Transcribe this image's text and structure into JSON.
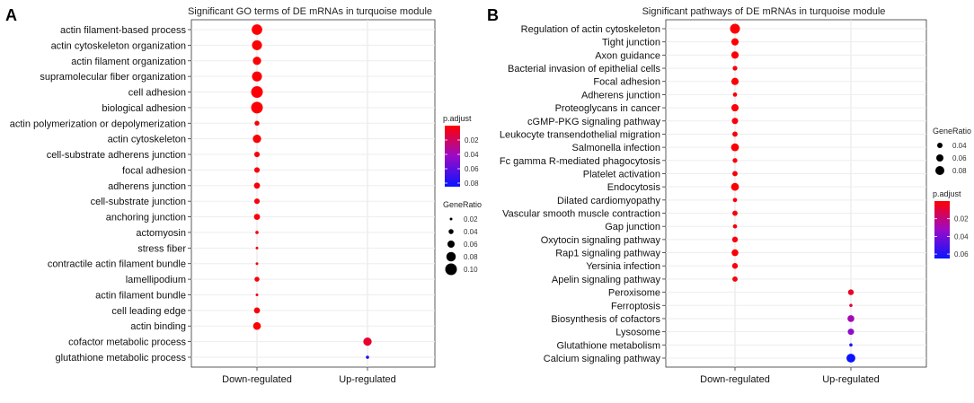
{
  "chart_data": [
    {
      "panel_label": "A",
      "type": "scatter",
      "title": "Significant GO terms of DE mRNAs in turquoise module",
      "categories_x": [
        "Down-regulated",
        "Up-regulated"
      ],
      "terms": [
        "actin filament-based process",
        "actin cytoskeleton organization",
        "actin filament organization",
        "supramolecular fiber organization",
        "cell adhesion",
        "biological adhesion",
        "actin polymerization or depolymerization",
        "actin cytoskeleton",
        "cell-substrate adherens junction",
        "focal adhesion",
        "adherens junction",
        "cell-substrate junction",
        "anchoring junction",
        "actomyosin",
        "stress fiber",
        "contractile actin filament bundle",
        "lamellipodium",
        "actin filament bundle",
        "cell leading edge",
        "actin binding",
        "cofactor metabolic process",
        "glutathione metabolic process"
      ],
      "points": [
        {
          "term": "actin filament-based process",
          "group": "Down-regulated",
          "gene_ratio": 0.09,
          "p_adjust": 0.001
        },
        {
          "term": "actin cytoskeleton organization",
          "group": "Down-regulated",
          "gene_ratio": 0.085,
          "p_adjust": 0.001
        },
        {
          "term": "actin filament organization",
          "group": "Down-regulated",
          "gene_ratio": 0.07,
          "p_adjust": 0.001
        },
        {
          "term": "supramolecular fiber organization",
          "group": "Down-regulated",
          "gene_ratio": 0.085,
          "p_adjust": 0.001
        },
        {
          "term": "cell adhesion",
          "group": "Down-regulated",
          "gene_ratio": 0.1,
          "p_adjust": 0.001
        },
        {
          "term": "biological adhesion",
          "group": "Down-regulated",
          "gene_ratio": 0.1,
          "p_adjust": 0.001
        },
        {
          "term": "actin polymerization or depolymerization",
          "group": "Down-regulated",
          "gene_ratio": 0.04,
          "p_adjust": 0.002
        },
        {
          "term": "actin cytoskeleton",
          "group": "Down-regulated",
          "gene_ratio": 0.07,
          "p_adjust": 0.001
        },
        {
          "term": "cell-substrate adherens junction",
          "group": "Down-regulated",
          "gene_ratio": 0.045,
          "p_adjust": 0.002
        },
        {
          "term": "focal adhesion",
          "group": "Down-regulated",
          "gene_ratio": 0.045,
          "p_adjust": 0.002
        },
        {
          "term": "adherens junction",
          "group": "Down-regulated",
          "gene_ratio": 0.05,
          "p_adjust": 0.002
        },
        {
          "term": "cell-substrate junction",
          "group": "Down-regulated",
          "gene_ratio": 0.045,
          "p_adjust": 0.002
        },
        {
          "term": "anchoring junction",
          "group": "Down-regulated",
          "gene_ratio": 0.05,
          "p_adjust": 0.002
        },
        {
          "term": "actomyosin",
          "group": "Down-regulated",
          "gene_ratio": 0.025,
          "p_adjust": 0.003
        },
        {
          "term": "stress fiber",
          "group": "Down-regulated",
          "gene_ratio": 0.018,
          "p_adjust": 0.003
        },
        {
          "term": "contractile actin filament bundle",
          "group": "Down-regulated",
          "gene_ratio": 0.018,
          "p_adjust": 0.003
        },
        {
          "term": "lamellipodium",
          "group": "Down-regulated",
          "gene_ratio": 0.04,
          "p_adjust": 0.002
        },
        {
          "term": "actin filament bundle",
          "group": "Down-regulated",
          "gene_ratio": 0.018,
          "p_adjust": 0.003
        },
        {
          "term": "cell leading edge",
          "group": "Down-regulated",
          "gene_ratio": 0.05,
          "p_adjust": 0.002
        },
        {
          "term": "actin binding",
          "group": "Down-regulated",
          "gene_ratio": 0.065,
          "p_adjust": 0.001
        },
        {
          "term": "cofactor metabolic process",
          "group": "Up-regulated",
          "gene_ratio": 0.07,
          "p_adjust": 0.01
        },
        {
          "term": "glutathione metabolic process",
          "group": "Up-regulated",
          "gene_ratio": 0.025,
          "p_adjust": 0.08
        }
      ],
      "legend_color": {
        "title": "p.adjust",
        "ticks": [
          "0.02",
          "0.04",
          "0.06",
          "0.08"
        ],
        "min": 0.0,
        "max": 0.085
      },
      "legend_size": {
        "title": "GeneRatio",
        "ticks": [
          "0.02",
          "0.04",
          "0.06",
          "0.08",
          "0.10"
        ]
      },
      "size_range": [
        0.02,
        0.1
      ]
    },
    {
      "panel_label": "B",
      "type": "scatter",
      "title": "Significant pathways of DE mRNAs in turquoise module",
      "categories_x": [
        "Down-regulated",
        "Up-regulated"
      ],
      "terms": [
        "Regulation of actin cytoskeleton",
        "Tight junction",
        "Axon guidance",
        "Bacterial invasion of epithelial cells",
        "Focal adhesion",
        "Adherens junction",
        "Proteoglycans in cancer",
        "cGMP-PKG signaling pathway",
        "Leukocyte transendothelial migration",
        "Salmonella infection",
        "Fc gamma R-mediated phagocytosis",
        "Platelet activation",
        "Endocytosis",
        "Dilated cardiomyopathy",
        "Vascular smooth muscle contraction",
        "Gap junction",
        "Oxytocin signaling pathway",
        "Rap1 signaling pathway",
        "Yersinia infection",
        "Apelin signaling pathway",
        "Peroxisome",
        "Ferroptosis",
        "Biosynthesis of cofactors",
        "Lysosome",
        "Glutathione metabolism",
        "Calcium signaling pathway"
      ],
      "points": [
        {
          "term": "Regulation of actin cytoskeleton",
          "group": "Down-regulated",
          "gene_ratio": 0.09,
          "p_adjust": 0.001
        },
        {
          "term": "Tight junction",
          "group": "Down-regulated",
          "gene_ratio": 0.065,
          "p_adjust": 0.001
        },
        {
          "term": "Axon guidance",
          "group": "Down-regulated",
          "gene_ratio": 0.065,
          "p_adjust": 0.001
        },
        {
          "term": "Bacterial invasion of epithelial cells",
          "group": "Down-regulated",
          "gene_ratio": 0.04,
          "p_adjust": 0.002
        },
        {
          "term": "Focal adhesion",
          "group": "Down-regulated",
          "gene_ratio": 0.065,
          "p_adjust": 0.001
        },
        {
          "term": "Adherens junction",
          "group": "Down-regulated",
          "gene_ratio": 0.035,
          "p_adjust": 0.002
        },
        {
          "term": "Proteoglycans in cancer",
          "group": "Down-regulated",
          "gene_ratio": 0.065,
          "p_adjust": 0.001
        },
        {
          "term": "cGMP-PKG signaling pathway",
          "group": "Down-regulated",
          "gene_ratio": 0.055,
          "p_adjust": 0.002
        },
        {
          "term": "Leukocyte transendothelial migration",
          "group": "Down-regulated",
          "gene_ratio": 0.045,
          "p_adjust": 0.002
        },
        {
          "term": "Salmonella infection",
          "group": "Down-regulated",
          "gene_ratio": 0.07,
          "p_adjust": 0.001
        },
        {
          "term": "Fc gamma R-mediated phagocytosis",
          "group": "Down-regulated",
          "gene_ratio": 0.04,
          "p_adjust": 0.002
        },
        {
          "term": "Platelet activation",
          "group": "Down-regulated",
          "gene_ratio": 0.045,
          "p_adjust": 0.002
        },
        {
          "term": "Endocytosis",
          "group": "Down-regulated",
          "gene_ratio": 0.07,
          "p_adjust": 0.001
        },
        {
          "term": "Dilated cardiomyopathy",
          "group": "Down-regulated",
          "gene_ratio": 0.035,
          "p_adjust": 0.002
        },
        {
          "term": "Vascular smooth muscle contraction",
          "group": "Down-regulated",
          "gene_ratio": 0.045,
          "p_adjust": 0.002
        },
        {
          "term": "Gap junction",
          "group": "Down-regulated",
          "gene_ratio": 0.035,
          "p_adjust": 0.002
        },
        {
          "term": "Oxytocin signaling pathway",
          "group": "Down-regulated",
          "gene_ratio": 0.05,
          "p_adjust": 0.002
        },
        {
          "term": "Rap1 signaling pathway",
          "group": "Down-regulated",
          "gene_ratio": 0.06,
          "p_adjust": 0.001
        },
        {
          "term": "Yersinia infection",
          "group": "Down-regulated",
          "gene_ratio": 0.05,
          "p_adjust": 0.002
        },
        {
          "term": "Apelin signaling pathway",
          "group": "Down-regulated",
          "gene_ratio": 0.045,
          "p_adjust": 0.002
        },
        {
          "term": "Peroxisome",
          "group": "Up-regulated",
          "gene_ratio": 0.05,
          "p_adjust": 0.006
        },
        {
          "term": "Ferroptosis",
          "group": "Up-regulated",
          "gene_ratio": 0.025,
          "p_adjust": 0.01
        },
        {
          "term": "Biosynthesis of cofactors",
          "group": "Up-regulated",
          "gene_ratio": 0.06,
          "p_adjust": 0.03
        },
        {
          "term": "Lysosome",
          "group": "Up-regulated",
          "gene_ratio": 0.055,
          "p_adjust": 0.035
        },
        {
          "term": "Glutathione metabolism",
          "group": "Up-regulated",
          "gene_ratio": 0.025,
          "p_adjust": 0.06
        },
        {
          "term": "Calcium signaling pathway",
          "group": "Up-regulated",
          "gene_ratio": 0.08,
          "p_adjust": 0.065
        }
      ],
      "legend_size": {
        "title": "GeneRatio",
        "ticks": [
          "0.04",
          "0.06",
          "0.08"
        ]
      },
      "legend_color": {
        "title": "p.adjust",
        "ticks": [
          "0.02",
          "0.04",
          "0.06"
        ],
        "min": 0.0,
        "max": 0.065
      },
      "size_range": [
        0.02,
        0.09
      ]
    }
  ]
}
